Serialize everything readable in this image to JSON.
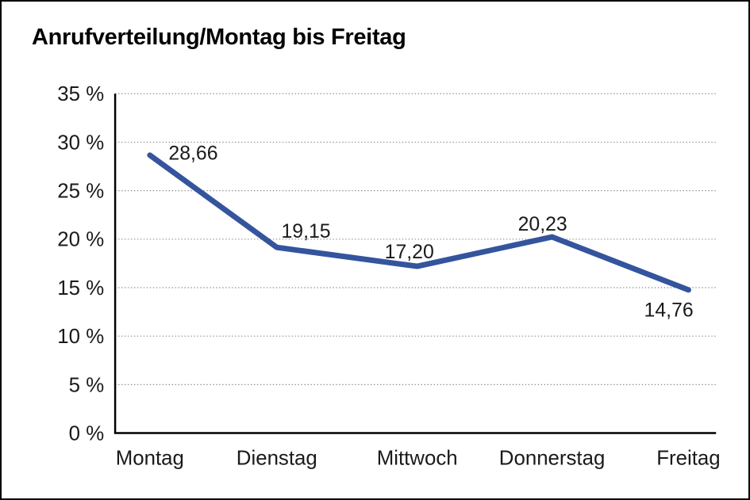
{
  "chart_data": {
    "type": "line",
    "title": "Anrufverteilung/Montag bis Freitag",
    "categories": [
      "Montag",
      "Dienstag",
      "Mittwoch",
      "Donnerstag",
      "Freitag"
    ],
    "values": [
      28.66,
      19.15,
      17.2,
      20.23,
      14.76
    ],
    "point_labels": [
      "28,66",
      "19,15",
      "17,20",
      "20,23",
      "14,76"
    ],
    "series_name": "Anrufverteilung",
    "xlabel": "",
    "ylabel": "",
    "ylim": [
      0,
      35
    ],
    "y_tick_step": 5,
    "y_tick_labels": [
      "0 %",
      "5 %",
      "10 %",
      "15 %",
      "20 %",
      "25 %",
      "30 %",
      "35 %"
    ],
    "grid": "horizontal-dotted",
    "legend_position": "none",
    "line_color": "#34549D",
    "grid_color": "#8c8c8c",
    "axis_color": "#000000",
    "text_color": "#1a1a1a",
    "background_color": "#ffffff"
  }
}
